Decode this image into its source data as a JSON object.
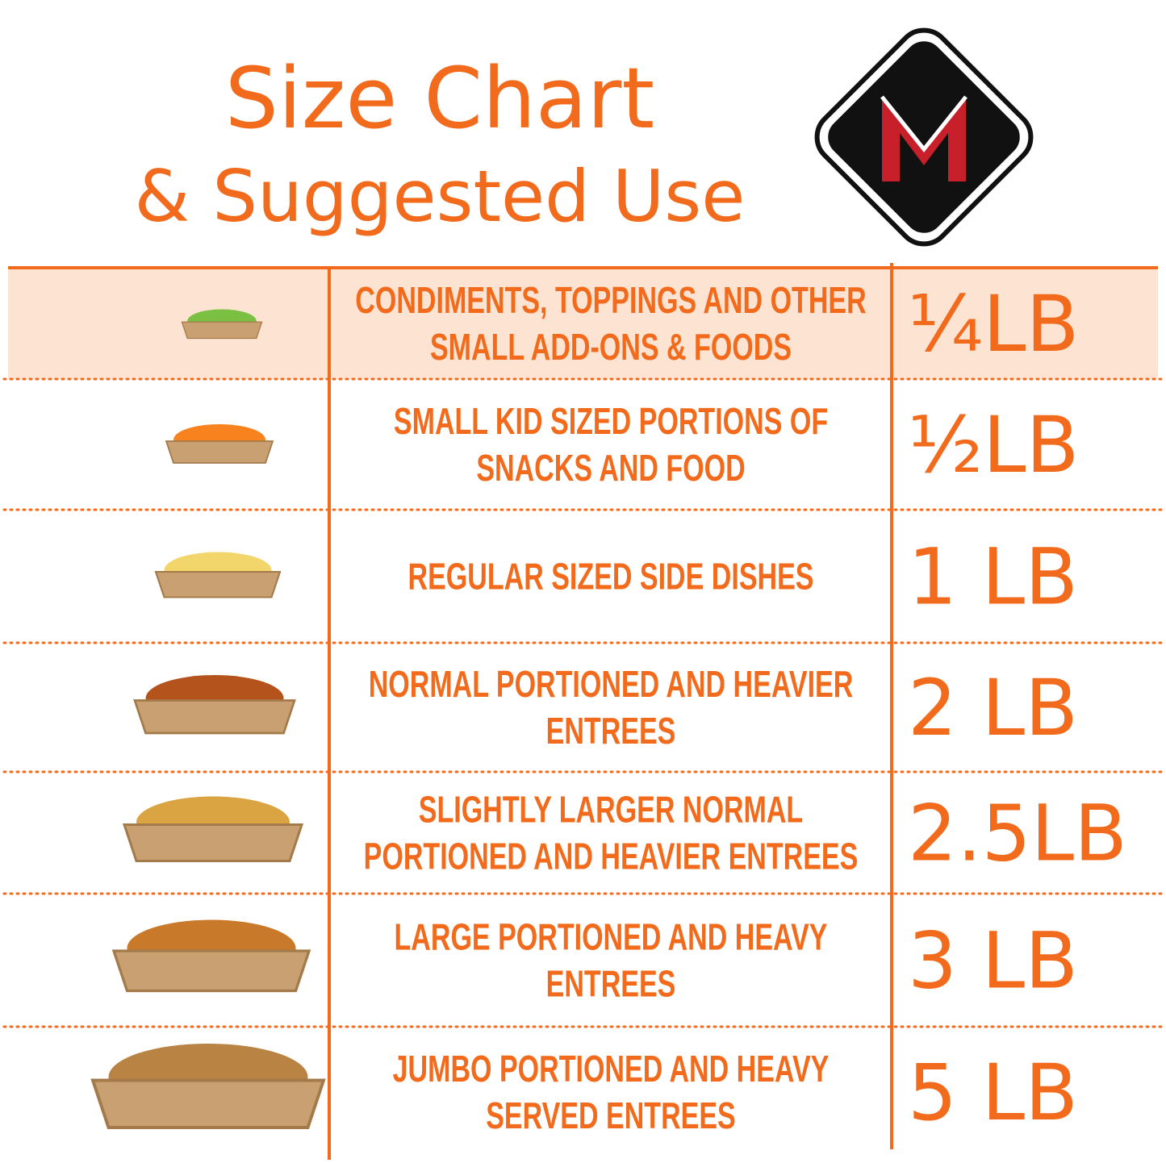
{
  "header": {
    "title_line1": "Size Chart",
    "title_line2": "& Suggested Use"
  },
  "table": {
    "rows": [
      {
        "description": [
          "CONDIMENTS, TOPPINGS AND OTHER",
          "SMALL ADD-ONS & FOODS"
        ],
        "size": "¼LB"
      },
      {
        "description": [
          "SMALL KID SIZED PORTIONS OF",
          "SNACKS AND FOOD"
        ],
        "size": "½LB"
      },
      {
        "description": [
          "REGULAR SIZED SIDE DISHES"
        ],
        "size": "1 LB"
      },
      {
        "description": [
          "NORMAL PORTIONED AND HEAVIER",
          "ENTREES"
        ],
        "size": "2 LB"
      },
      {
        "description": [
          "SLIGHTLY LARGER NORMAL",
          "PORTIONED AND HEAVIER ENTREES"
        ],
        "size": "2.5LB"
      },
      {
        "description": [
          "LARGE PORTIONED AND HEAVY",
          "ENTREES"
        ],
        "size": "3 LB"
      },
      {
        "description": [
          "JUMBO PORTIONED AND HEAVY",
          "SERVED ENTREES"
        ],
        "size": "5 LB"
      }
    ]
  }
}
